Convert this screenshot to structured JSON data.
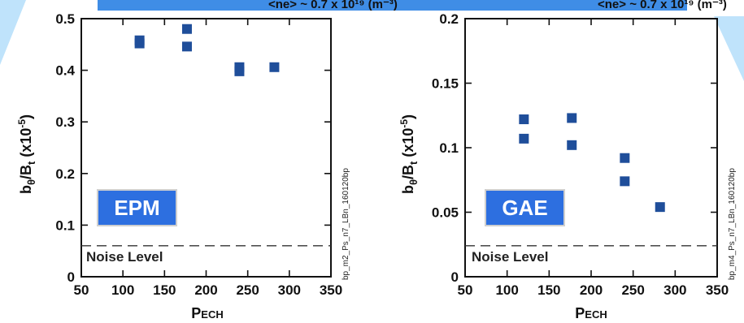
{
  "colors": {
    "marker": "#1f4e9a",
    "tag_bg": "#2d6fe0",
    "banner": "#3f8de6",
    "deco": "#bfe3fb"
  },
  "banner": {
    "left_text": "<ne> ~ 0.7 x 10¹⁹ (m⁻³)",
    "right_text": "<ne> ~ 0.7 x 10¹⁹ (m⁻³)"
  },
  "chart_data": [
    {
      "type": "scatter",
      "xlabel_main": "P",
      "xlabel_sub": "ECH",
      "ylabel_main": "b",
      "ylabel_sub1": "θ",
      "ylabel_mid": "/B",
      "ylabel_sub2": "t",
      "ylabel_tail": " (x10",
      "ylabel_exp": "-5",
      "ylabel_close": ")",
      "xlim": [
        50,
        350
      ],
      "ylim": [
        0,
        0.5
      ],
      "xticks": [
        50,
        100,
        150,
        200,
        250,
        300,
        350
      ],
      "yticks": [
        0,
        0.1,
        0.2,
        0.3,
        0.4,
        0.5
      ],
      "xtick_labels": [
        "50",
        "100",
        "150",
        "200",
        "250",
        "300",
        "350"
      ],
      "ytick_labels": [
        "0",
        "0.1",
        "0.2",
        "0.3",
        "0.4",
        "0.5"
      ],
      "x": [
        120,
        120,
        177,
        177,
        240,
        240,
        282
      ],
      "y": [
        0.452,
        0.458,
        0.48,
        0.446,
        0.406,
        0.398,
        0.406
      ],
      "noise_level": 0.06,
      "noise_label": "Noise Level",
      "tag": "EPM",
      "side_label": "bp_m2_Ps_n7_LBn_160120bp",
      "grid": false
    },
    {
      "type": "scatter",
      "xlabel_main": "P",
      "xlabel_sub": "ECH",
      "ylabel_main": "b",
      "ylabel_sub1": "θ",
      "ylabel_mid": "/B",
      "ylabel_sub2": "t",
      "ylabel_tail": " (x10",
      "ylabel_exp": "-5",
      "ylabel_close": ")",
      "xlim": [
        50,
        350
      ],
      "ylim": [
        0,
        0.2
      ],
      "xticks": [
        50,
        100,
        150,
        200,
        250,
        300,
        350
      ],
      "yticks": [
        0,
        0.05,
        0.1,
        0.15,
        0.2
      ],
      "xtick_labels": [
        "50",
        "100",
        "150",
        "200",
        "250",
        "300",
        "350"
      ],
      "ytick_labels": [
        "0",
        "0.05",
        "0.1",
        "0.15",
        "0.2"
      ],
      "x": [
        120,
        120,
        177,
        177,
        240,
        240,
        282
      ],
      "y": [
        0.122,
        0.107,
        0.123,
        0.102,
        0.092,
        0.074,
        0.054
      ],
      "noise_level": 0.024,
      "noise_label": "Noise Level",
      "tag": "GAE",
      "side_label": "bp_m4_Ps_n7_LBn_160120bp",
      "grid": false
    }
  ]
}
